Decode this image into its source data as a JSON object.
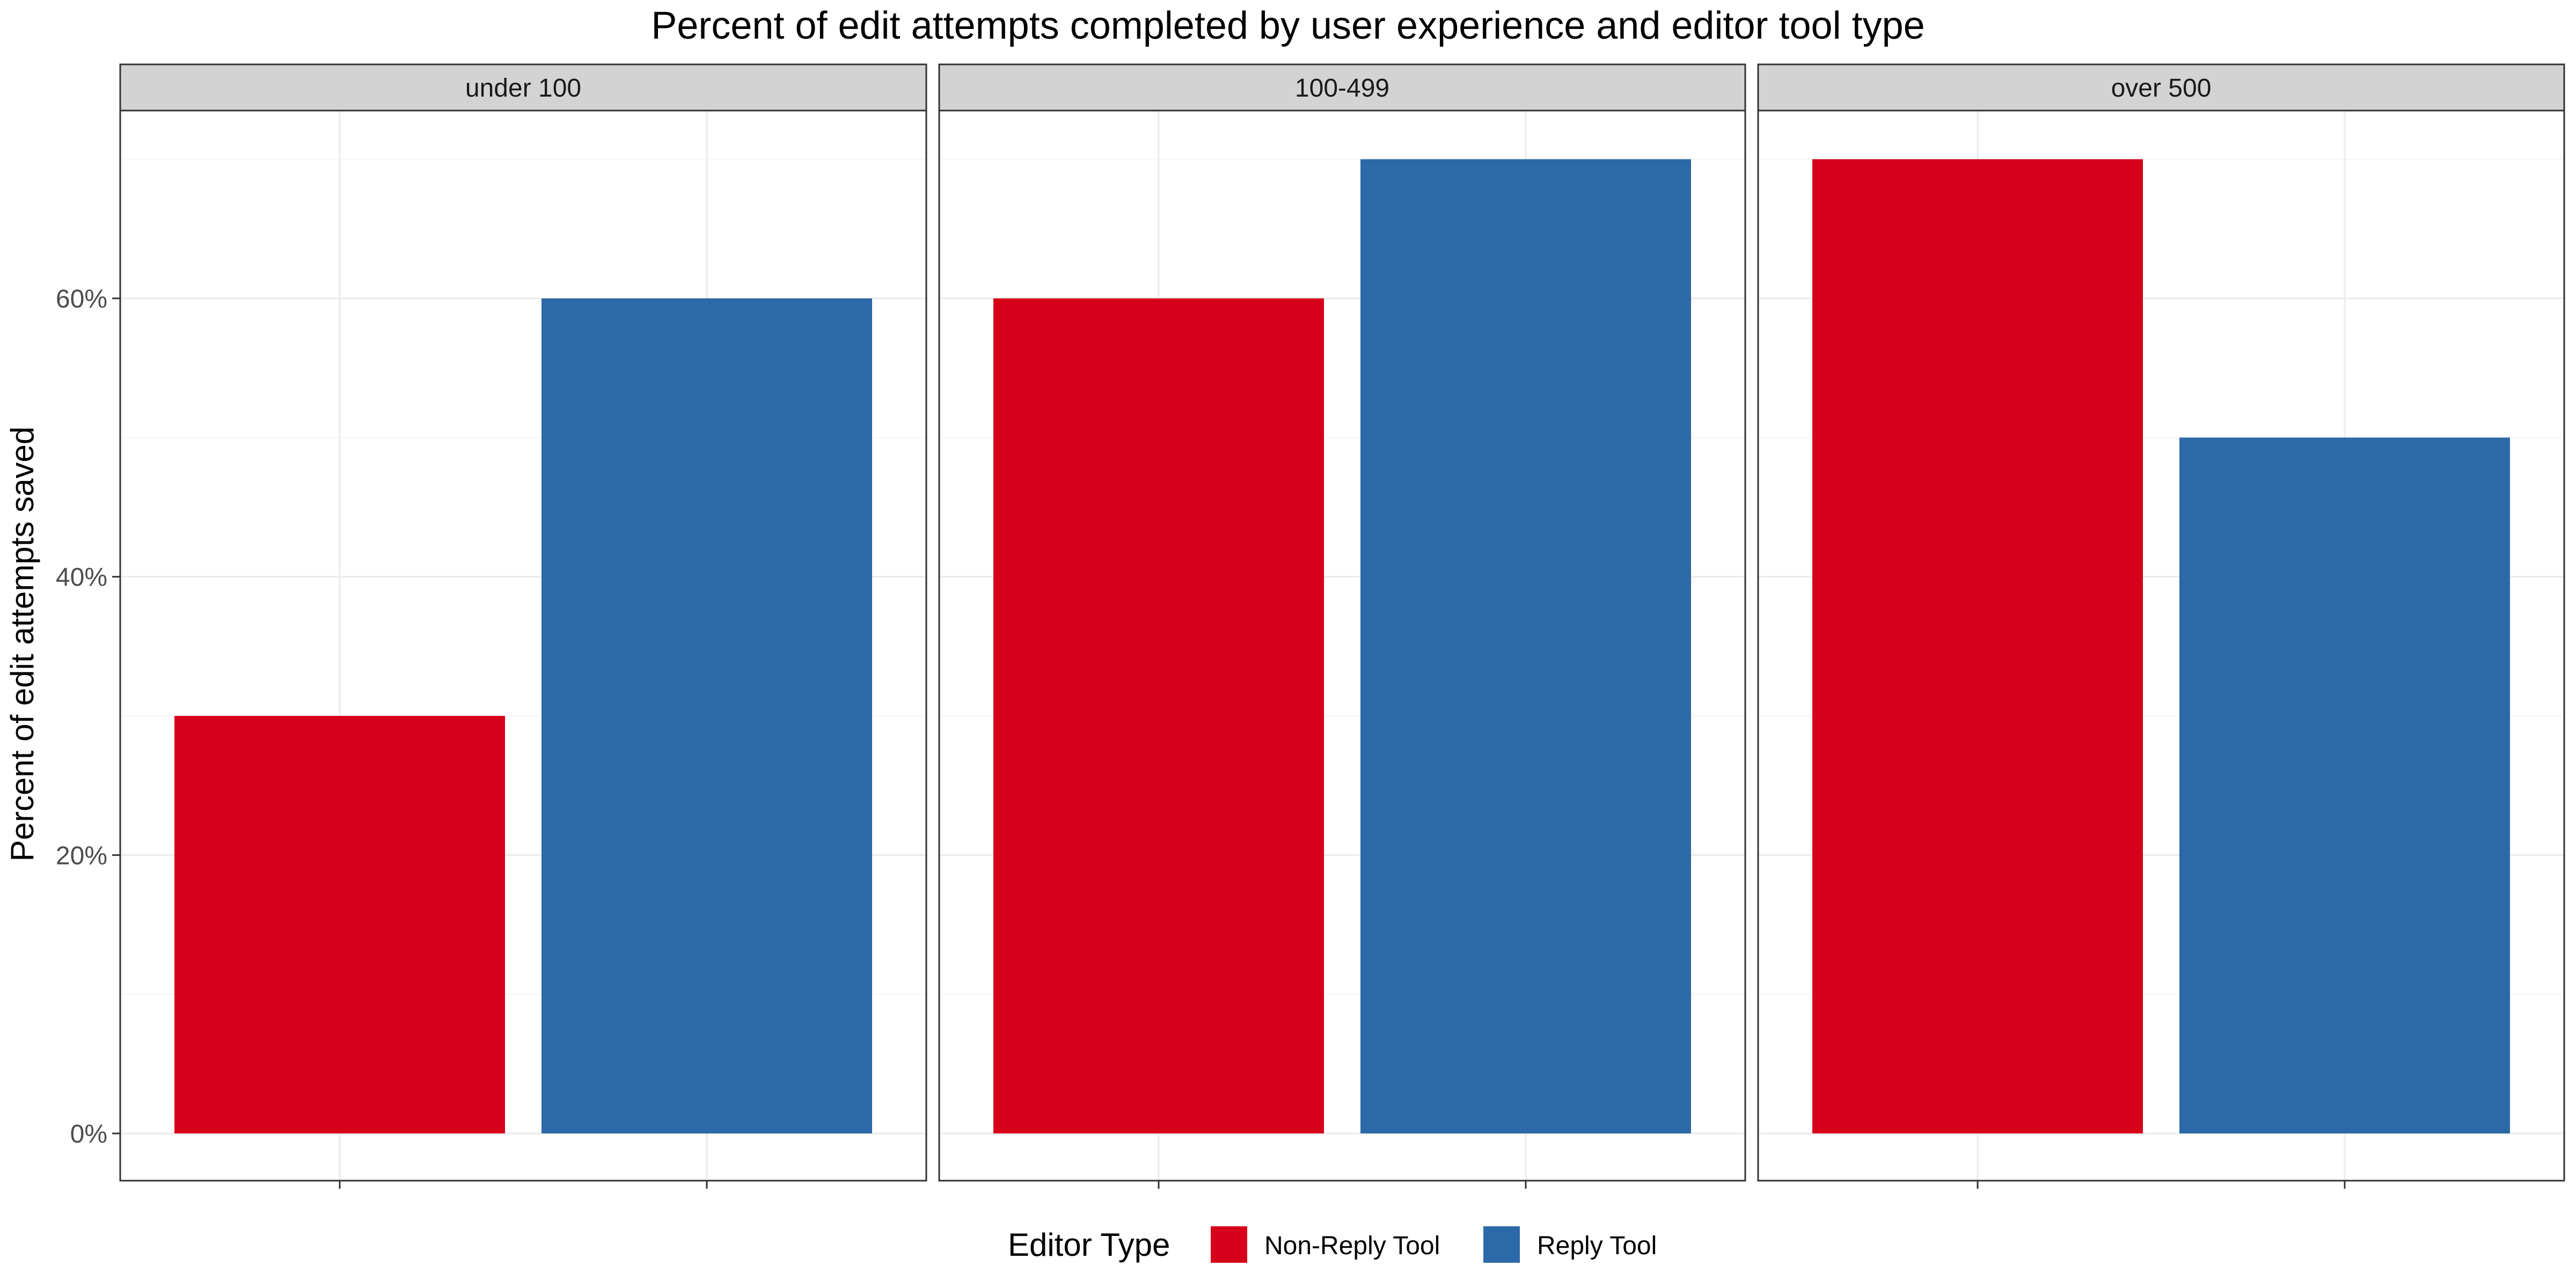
{
  "chart_data": {
    "type": "bar",
    "title": "Percent of edit attempts completed by user experience and editor tool type",
    "ylabel": "Percent of edit attempts saved",
    "xlabel": "",
    "ylim": [
      0,
      0.735
    ],
    "y_ticks": [
      0,
      0.2,
      0.4,
      0.6
    ],
    "y_tick_labels": [
      "0%",
      "20%",
      "40%",
      "60%"
    ],
    "grid": true,
    "legend": {
      "title": "Editor Type",
      "position": "bottom",
      "items": [
        {
          "label": "Non-Reply Tool",
          "color": "#d7001a"
        },
        {
          "label": "Reply Tool",
          "color": "#2c69a8"
        }
      ]
    },
    "facets": [
      {
        "label": "under 100",
        "values": {
          "Non-Reply Tool": 0.3,
          "Reply Tool": 0.6
        }
      },
      {
        "label": "100-499",
        "values": {
          "Non-Reply Tool": 0.6,
          "Reply Tool": 0.7
        }
      },
      {
        "label": "over 500",
        "values": {
          "Non-Reply Tool": 0.7,
          "Reply Tool": 0.5
        }
      }
    ],
    "colors": {
      "strip_fill": "#d3d3d3",
      "grid_major": "#ebebeb",
      "grid_minor": "#f5f5f5",
      "panel_border": "#333333"
    }
  }
}
